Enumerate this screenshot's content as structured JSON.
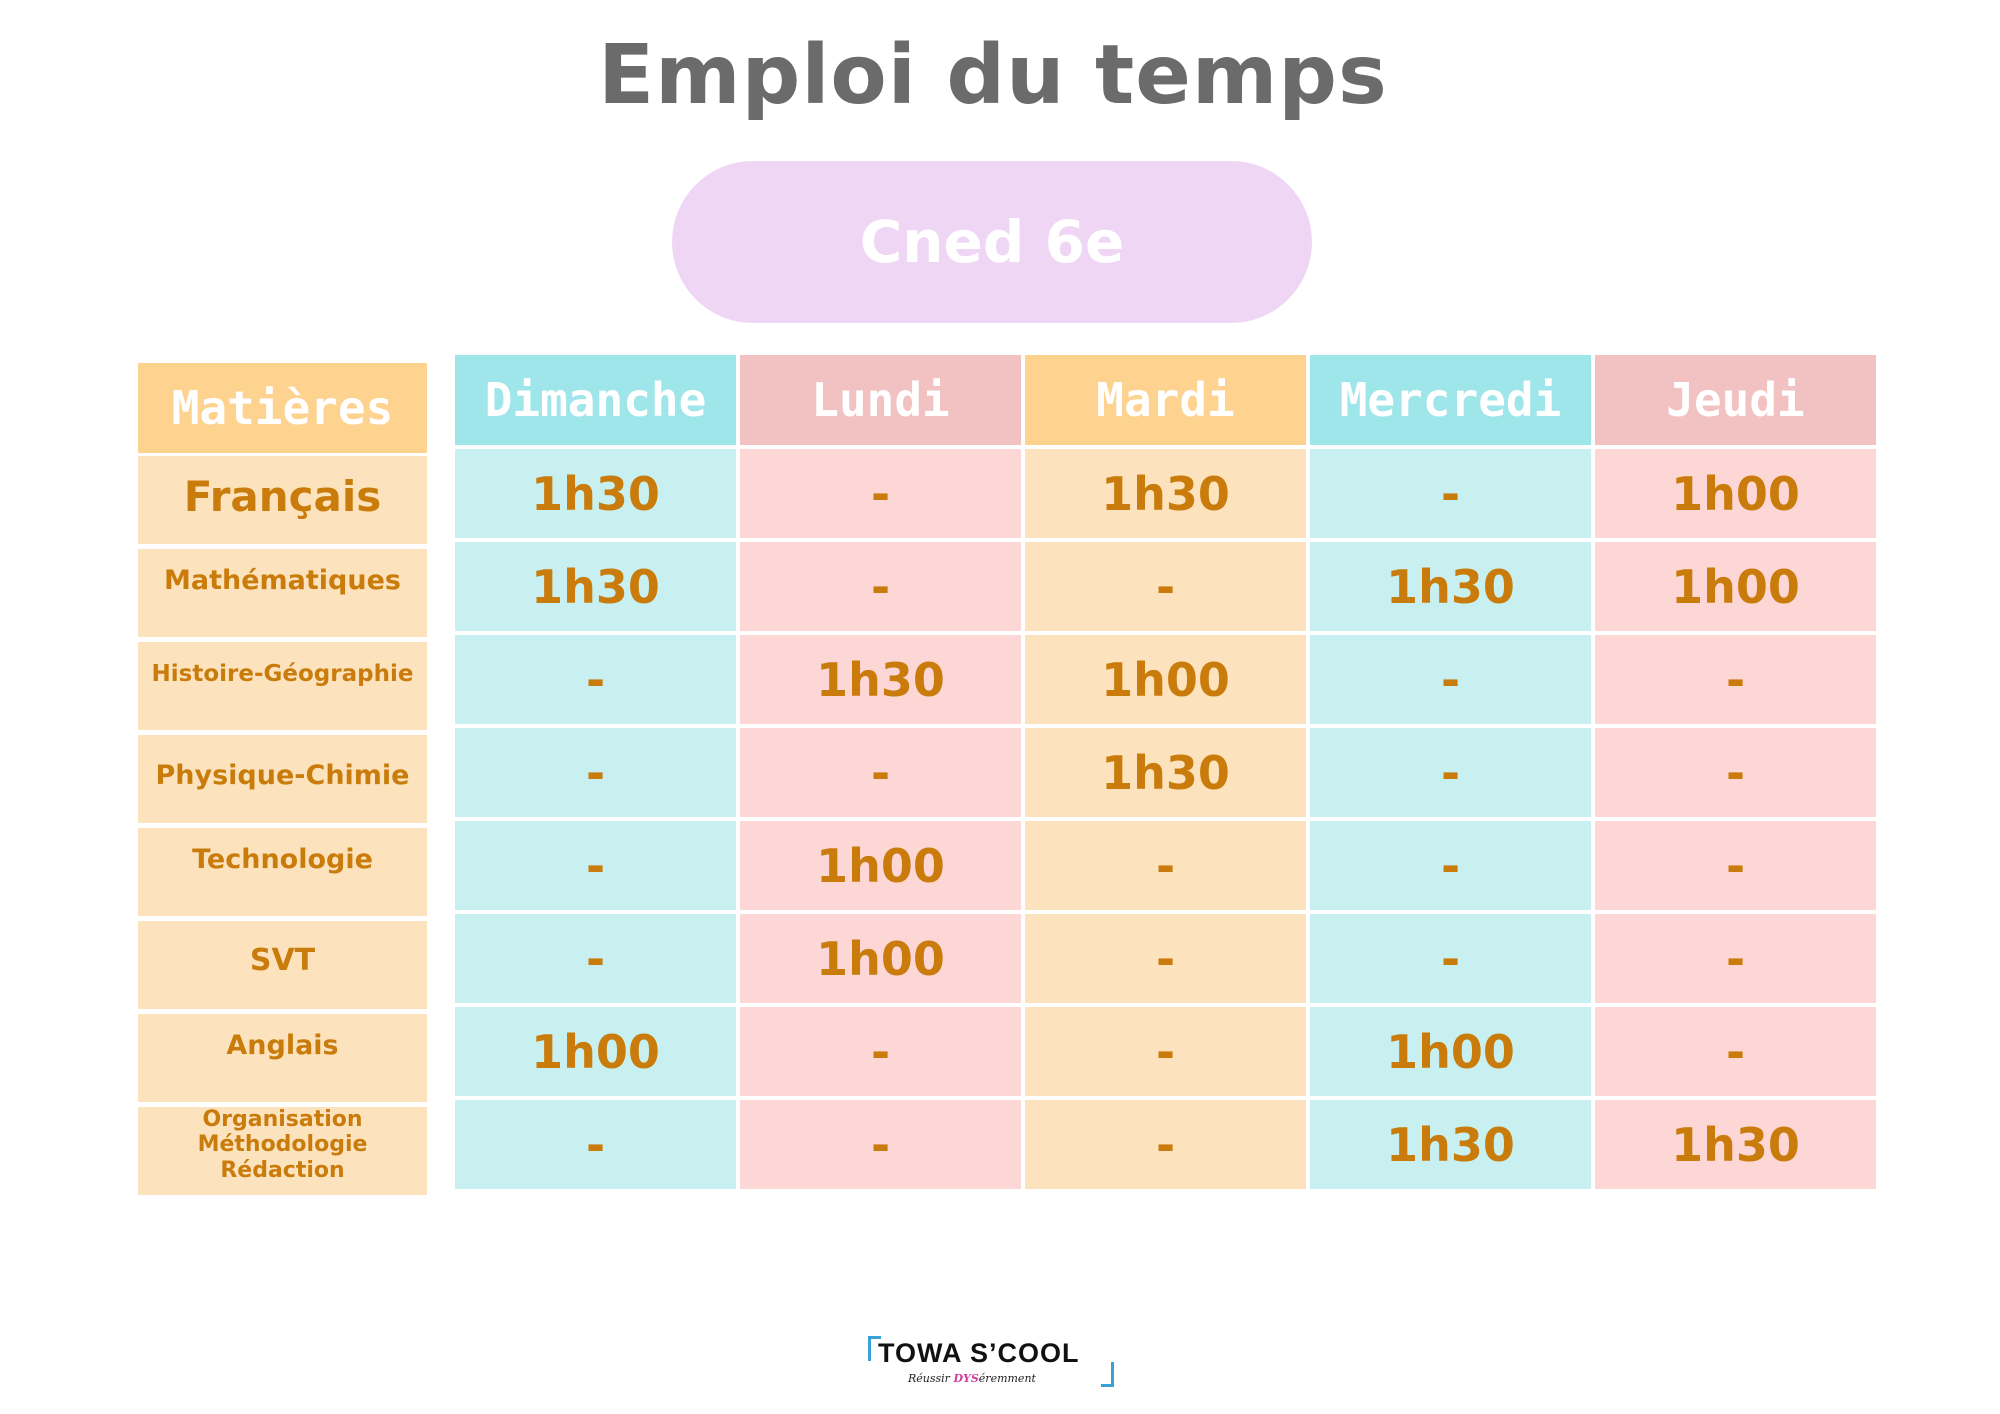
{
  "title": "Emploi du temps",
  "subtitle": "Cned 6e",
  "subjects_header": "Matières",
  "subjects": [
    {
      "label": "Français",
      "size": 42,
      "pad": 14
    },
    {
      "label": "Mathématiques",
      "size": 27,
      "pad": 14
    },
    {
      "label": "Histoire-Géographie",
      "size": 23,
      "pad": 18
    },
    {
      "label": "Physique-Chimie",
      "size": 27,
      "pad": 23
    },
    {
      "label": "Technologie",
      "size": 27,
      "pad": 14
    },
    {
      "label": "SVT",
      "size": 30,
      "pad": 20
    },
    {
      "label": "Anglais",
      "size": 27,
      "pad": 14
    },
    {
      "label": "Organisation\nMéthodologie\nRédaction",
      "size": 22,
      "pad": 0
    }
  ],
  "days": [
    "Dimanche",
    "Lundi",
    "Mardi",
    "Mercredi",
    "Jeudi"
  ],
  "schedule": [
    [
      "1h30",
      "-",
      "1h30",
      "-",
      "1h00"
    ],
    [
      "1h30",
      "-",
      "-",
      "1h30",
      "1h00"
    ],
    [
      "-",
      "1h30",
      "1h00",
      "-",
      "-"
    ],
    [
      "-",
      "-",
      "1h30",
      "-",
      "-"
    ],
    [
      "-",
      "1h00",
      "-",
      "-",
      "-"
    ],
    [
      "-",
      "1h00",
      "-",
      "-",
      "-"
    ],
    [
      "1h00",
      "-",
      "-",
      "1h00",
      "-"
    ],
    [
      "-",
      "-",
      "-",
      "1h30",
      "1h30"
    ]
  ],
  "logo": {
    "name": "TOWA S’COOL",
    "tagline_1": "Réussir ",
    "tagline_dys": "DYS",
    "tagline_2": "éremment"
  }
}
